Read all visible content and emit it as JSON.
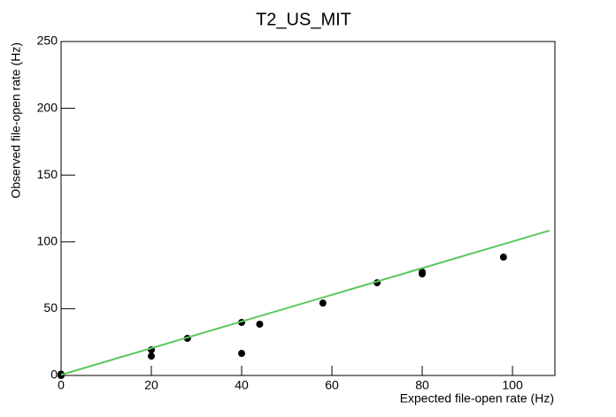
{
  "chart_data": {
    "type": "scatter",
    "title": "T2_US_MIT",
    "x_label": "Expected file-open rate (Hz)",
    "y_label": "Observed file-open rate (Hz)",
    "series": [
      {
        "color": "#000000",
        "x": [
          0,
          0,
          20,
          20,
          28,
          40,
          40,
          44,
          58,
          70,
          80,
          80,
          98
        ],
        "values": [
          0,
          1,
          19.2,
          14.5,
          27.8,
          39.7,
          16.5,
          38.4,
          54.2,
          69.4,
          77.4,
          76,
          88.6
        ]
      }
    ],
    "fit": {
      "color": "#5ac85a",
      "x": [
        0,
        108.2
      ],
      "values": [
        0.5,
        108.5
      ]
    },
    "xlim": [
      0,
      109.4
    ],
    "ylim": [
      0,
      250
    ],
    "xticks": [
      0,
      20,
      40,
      60,
      80,
      100
    ],
    "yticks": [
      0,
      50,
      100,
      150,
      200,
      250
    ]
  }
}
